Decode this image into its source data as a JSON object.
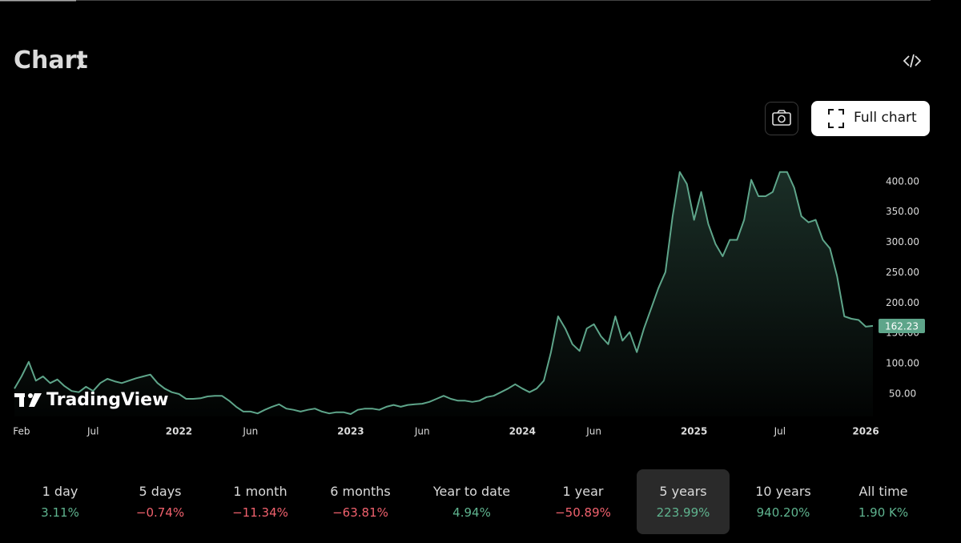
{
  "header": {
    "title": "Chart"
  },
  "buttons": {
    "full_chart": "Full chart"
  },
  "watermark": "TradingView",
  "chart_data": {
    "type": "area",
    "color": "#5ea58a",
    "categories": [
      null,
      "Feb",
      null,
      null,
      null,
      null,
      null,
      null,
      null,
      null,
      null,
      "Jul",
      null,
      null,
      null,
      null,
      null,
      null,
      null,
      null,
      null,
      null,
      null,
      "2022",
      null,
      null,
      null,
      null,
      null,
      null,
      null,
      null,
      null,
      "Jun",
      null,
      null,
      null,
      null,
      null,
      null,
      null,
      null,
      null,
      null,
      null,
      null,
      null,
      "2023",
      null,
      null,
      null,
      null,
      null,
      null,
      null,
      null,
      null,
      "Jun",
      null,
      null,
      null,
      null,
      null,
      null,
      null,
      null,
      null,
      null,
      null,
      null,
      null,
      "2024",
      null,
      null,
      null,
      null,
      null,
      null,
      null,
      null,
      null,
      "Jun",
      null,
      null,
      null,
      null,
      null,
      null,
      null,
      null,
      null,
      null,
      null,
      null,
      null,
      "2025",
      null,
      null,
      null,
      null,
      null,
      null,
      null,
      null,
      null,
      null,
      null,
      "Jul",
      null,
      null,
      null,
      null,
      null,
      null,
      null,
      null,
      null,
      null,
      null,
      "2026",
      null
    ],
    "values": [
      59,
      79,
      103,
      72,
      79,
      68,
      74,
      63,
      55,
      53,
      62,
      55,
      68,
      75,
      71,
      68,
      72,
      76,
      79,
      82,
      68,
      59,
      53,
      50,
      42,
      42,
      43,
      46,
      47,
      47,
      39,
      29,
      21,
      21,
      18,
      24,
      29,
      33,
      26,
      24,
      21,
      24,
      26,
      21,
      18,
      20,
      20,
      17,
      24,
      26,
      26,
      24,
      29,
      32,
      29,
      32,
      33,
      34,
      37,
      42,
      47,
      42,
      39,
      39,
      37,
      39,
      45,
      47,
      53,
      59,
      66,
      59,
      53,
      59,
      72,
      119,
      178,
      158,
      132,
      121,
      158,
      165,
      145,
      132,
      178,
      138,
      152,
      119,
      158,
      191,
      224,
      251,
      343,
      416,
      396,
      337,
      383,
      330,
      297,
      277,
      304,
      304,
      337,
      403,
      376,
      376,
      383,
      416,
      416,
      390,
      343,
      333,
      337,
      304,
      290,
      244,
      178,
      174,
      172,
      161,
      162.23
    ],
    "ylim": [
      13,
      442
    ],
    "yticks": [
      {
        "value": 50,
        "label": "50.00"
      },
      {
        "value": 100,
        "label": "100.00"
      },
      {
        "value": 150,
        "label": "150.00"
      },
      {
        "value": 200,
        "label": "200.00"
      },
      {
        "value": 250,
        "label": "250.00"
      },
      {
        "value": 300,
        "label": "300.00"
      },
      {
        "value": 350,
        "label": "350.00"
      },
      {
        "value": 400,
        "label": "400.00"
      }
    ],
    "grid": false
  },
  "periods": [
    {
      "label": "1 day",
      "change": "3.11%"
    },
    {
      "label": "5 days",
      "change": "−0.74%"
    },
    {
      "label": "1 month",
      "change": "−11.34%"
    },
    {
      "label": "6 months",
      "change": "−63.81%"
    },
    {
      "label": "Year to date",
      "change": "4.94%"
    },
    {
      "label": "1 year",
      "change": "−50.89%"
    },
    {
      "label": "5 years",
      "change": "223.99%",
      "selected": true
    },
    {
      "label": "10 years",
      "change": "940.20%"
    },
    {
      "label": "All time",
      "change": "1.90 K%"
    }
  ]
}
